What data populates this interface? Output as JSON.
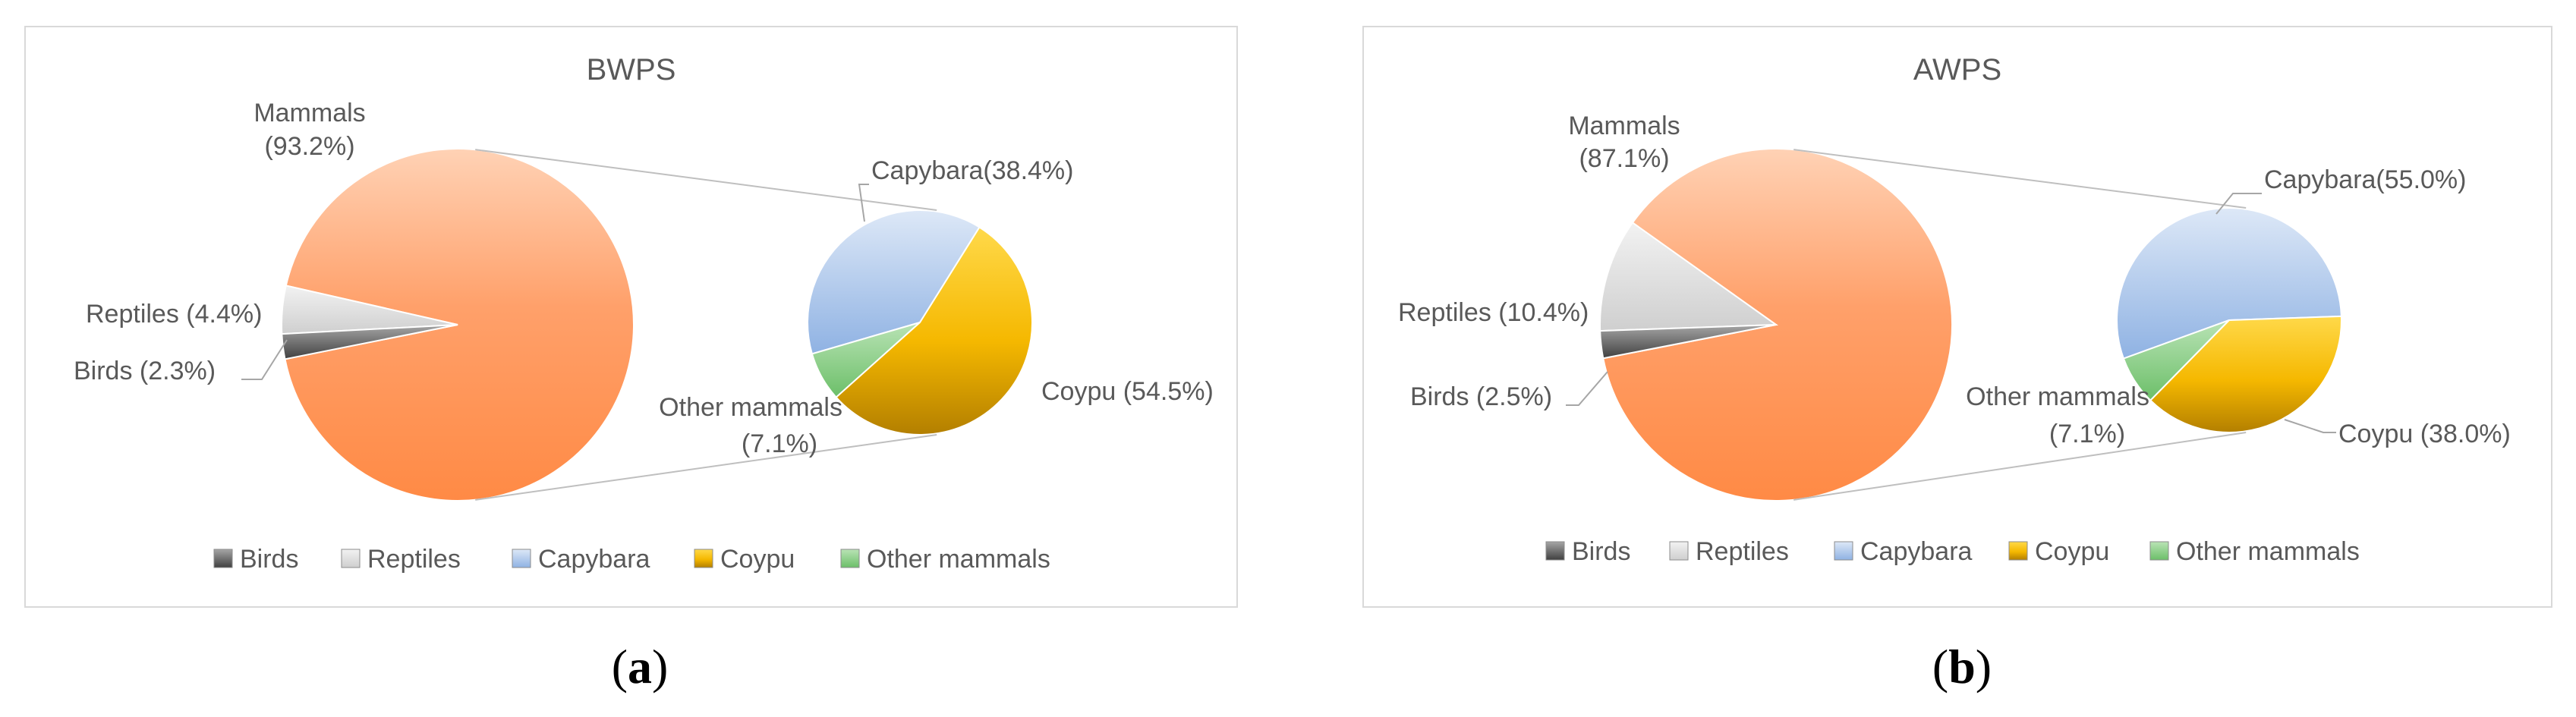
{
  "colors": {
    "Birds": "#7f7f7f",
    "Reptiles": "#e0e0e0",
    "Capybara": "#a9c4eb",
    "Coypu": "#f5b800",
    "Other mammals": "#7fc97f",
    "Mammals": "#ff9a5c",
    "border": "#d9d9d9",
    "connector": "#bfbfbf",
    "text": "#595959"
  },
  "chart_data": [
    {
      "type": "pie",
      "title": "BWPS",
      "caption": "(a)",
      "legend": [
        "Birds",
        "Reptiles",
        "Capybara",
        "Coypu",
        "Other mammals"
      ],
      "legend_position": "bottom",
      "main_pie": [
        {
          "name": "Mammals",
          "value": 93.2,
          "label": "Mammals",
          "label2": "(93.2%)"
        },
        {
          "name": "Reptiles",
          "value": 4.4,
          "label": "Reptiles (4.4%)"
        },
        {
          "name": "Birds",
          "value": 2.3,
          "label": "Birds (2.3%)"
        }
      ],
      "secondary_pie": [
        {
          "name": "Capybara",
          "value": 38.4,
          "label": "Capybara(38.4%)"
        },
        {
          "name": "Coypu",
          "value": 54.5,
          "label": "Coypu (54.5%)"
        },
        {
          "name": "Other mammals",
          "value": 7.1,
          "label": "Other mammals",
          "label2": "(7.1%)"
        }
      ]
    },
    {
      "type": "pie",
      "title": "AWPS",
      "caption": "(b)",
      "legend": [
        "Birds",
        "Reptiles",
        "Capybara",
        "Coypu",
        "Other mammals"
      ],
      "legend_position": "bottom",
      "main_pie": [
        {
          "name": "Mammals",
          "value": 87.1,
          "label": "Mammals",
          "label2": "(87.1%)"
        },
        {
          "name": "Reptiles",
          "value": 10.4,
          "label": "Reptiles (10.4%)"
        },
        {
          "name": "Birds",
          "value": 2.5,
          "label": "Birds (2.5%)"
        }
      ],
      "secondary_pie": [
        {
          "name": "Capybara",
          "value": 55.0,
          "label": "Capybara(55.0%)"
        },
        {
          "name": "Coypu",
          "value": 38.0,
          "label": "Coypu (38.0%)"
        },
        {
          "name": "Other mammals",
          "value": 7.1,
          "label": "Other mammals",
          "label2": "(7.1%)"
        }
      ]
    }
  ]
}
